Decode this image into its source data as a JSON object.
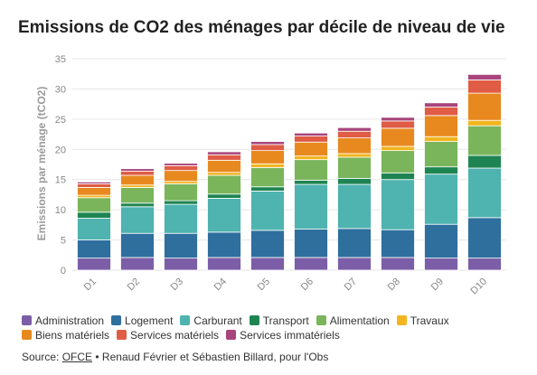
{
  "chart_data": {
    "type": "bar",
    "stacked": true,
    "title": "Emissions de CO2 des ménages par décile de niveau de vie",
    "ylabel": "Emissions par ménage (tCO2)",
    "xlabel": "",
    "ylim": [
      0,
      35
    ],
    "yticks": [
      0,
      5,
      10,
      15,
      20,
      25,
      30,
      35
    ],
    "grid": true,
    "legend_position": "bottom",
    "categories": [
      "D1",
      "D2",
      "D3",
      "D4",
      "D5",
      "D6",
      "D7",
      "D8",
      "D9",
      "D10"
    ],
    "series": [
      {
        "name": "Administration",
        "color": "#7b5ea7",
        "values": [
          2.0,
          2.1,
          2.0,
          2.1,
          2.1,
          2.1,
          2.1,
          2.1,
          2.0,
          2.0
        ]
      },
      {
        "name": "Logement",
        "color": "#2e6f9e",
        "values": [
          3.0,
          4.0,
          4.1,
          4.2,
          4.5,
          4.7,
          4.8,
          4.6,
          5.6,
          6.7
        ]
      },
      {
        "name": "Carburant",
        "color": "#4fb3b0",
        "values": [
          3.6,
          4.4,
          4.8,
          5.6,
          6.5,
          7.4,
          7.3,
          8.3,
          8.3,
          8.2
        ]
      },
      {
        "name": "Transport",
        "color": "#1e8552",
        "values": [
          1.0,
          0.6,
          0.6,
          0.7,
          0.7,
          0.7,
          1.0,
          1.1,
          1.2,
          2.1
        ]
      },
      {
        "name": "Alimentation",
        "color": "#7ab55c",
        "values": [
          2.4,
          2.6,
          2.8,
          3.1,
          3.2,
          3.4,
          3.5,
          3.7,
          4.2,
          4.9
        ]
      },
      {
        "name": "Travaux",
        "color": "#f2b51f",
        "values": [
          0.4,
          0.4,
          0.4,
          0.5,
          0.6,
          0.6,
          0.6,
          0.7,
          0.8,
          0.9
        ]
      },
      {
        "name": "Biens matériels",
        "color": "#e8891f",
        "values": [
          1.3,
          1.6,
          1.8,
          2.0,
          2.2,
          2.3,
          2.6,
          3.0,
          3.5,
          4.5
        ]
      },
      {
        "name": "Services matériels",
        "color": "#e05c45",
        "values": [
          0.6,
          0.7,
          0.8,
          0.9,
          1.0,
          1.0,
          1.1,
          1.2,
          1.4,
          2.2
        ]
      },
      {
        "name": "Services immatériels",
        "color": "#a8457c",
        "values": [
          0.3,
          0.4,
          0.4,
          0.5,
          0.5,
          0.5,
          0.6,
          0.6,
          0.7,
          0.9
        ]
      }
    ]
  },
  "source": {
    "label": "Source:",
    "link_text": "OFCE",
    "authors": "• Renaud Février et Sébastien Billard, pour l'Obs"
  }
}
